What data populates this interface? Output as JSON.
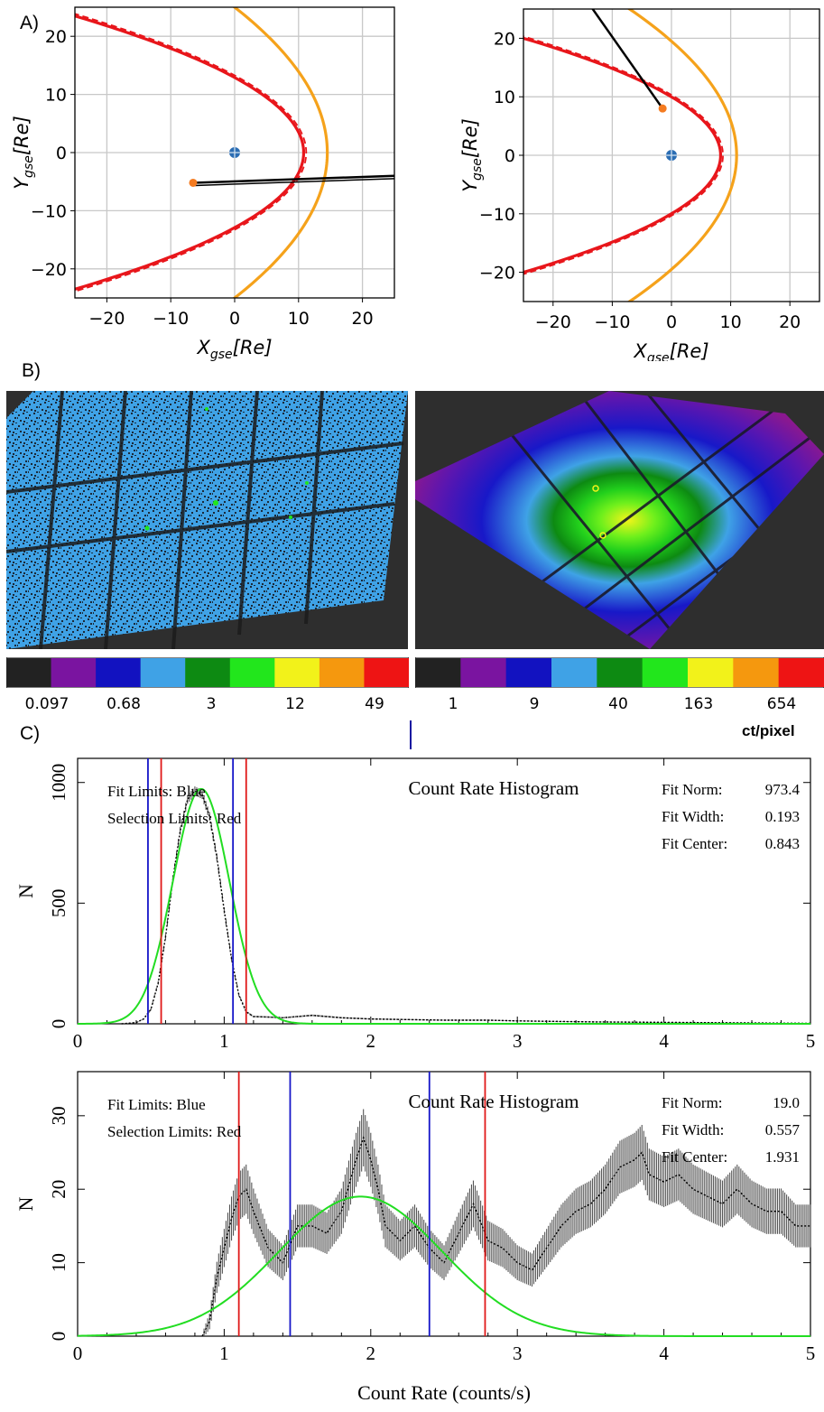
{
  "panel_labels": {
    "a": "A)",
    "b": "B)",
    "c": "C)"
  },
  "colors": {
    "magnetopause": "#e8161b",
    "bow_shock": "#f5a21b",
    "trajectory": "#000000",
    "earth": "#2b6db3",
    "marker": "#f47b20",
    "fit_limits": "#1515c8",
    "selection_limits": "#e01818",
    "fit_curve": "#22dd22",
    "histogram": "#000000"
  },
  "colorbar_palette": [
    "#222222",
    "#7a14a0",
    "#1212c0",
    "#3fa2e6",
    "#0d8a12",
    "#22e61c",
    "#f2f21a",
    "#f5980e",
    "#ee1414"
  ],
  "colorbar_left": {
    "labels": [
      "0.097",
      "0.68",
      "3",
      "12",
      "49"
    ]
  },
  "colorbar_right": {
    "labels": [
      "1",
      "9",
      "40",
      "163",
      "654"
    ],
    "unit": "ct/pixel"
  },
  "chart_data": [
    {
      "type": "line",
      "panel": "A-left",
      "xlabel": "X_gse[Re]",
      "ylabel": "Y_gse[Re]",
      "xlim": [
        -25,
        25
      ],
      "ylim": [
        -25,
        25
      ],
      "xticks": [
        "−20",
        "−10",
        "0",
        "10",
        "20"
      ],
      "yticks": [
        "20",
        "10",
        "0",
        "−10",
        "−20"
      ],
      "grid": true,
      "series": [
        {
          "kind": "magnetopause",
          "nose_x": 10.8,
          "flank_y_at_x_minus25": 23.5
        },
        {
          "kind": "bow_shock",
          "nose_x": 14.5,
          "flank_y_at_x_0": 25.0
        },
        {
          "kind": "trajectory",
          "points": [
            [
              -6.5,
              -5.2
            ],
            [
              25,
              -4.0
            ]
          ]
        },
        {
          "kind": "earth",
          "points": [
            [
              0,
              0
            ]
          ]
        },
        {
          "kind": "spacecraft",
          "points": [
            [
              -6.5,
              -5.2
            ]
          ]
        }
      ]
    },
    {
      "type": "line",
      "panel": "A-right",
      "xlabel": "X_gse[Re]",
      "ylabel": "Y_gse[Re]",
      "xlim": [
        -25,
        25
      ],
      "ylim": [
        -25,
        25
      ],
      "xticks": [
        "−20",
        "−10",
        "0",
        "10",
        "20"
      ],
      "yticks": [
        "20",
        "10",
        "0",
        "−10",
        "−20"
      ],
      "grid": true,
      "series": [
        {
          "kind": "magnetopause",
          "nose_x": 8.3,
          "flank_y_at_x_minus25": 20.0
        },
        {
          "kind": "bow_shock",
          "nose_x": 11.0,
          "flank_y_at_x_0": 19.5
        },
        {
          "kind": "trajectory",
          "points": [
            [
              -14,
              26
            ],
            [
              -1.5,
              8
            ]
          ]
        },
        {
          "kind": "earth",
          "points": [
            [
              0,
              0
            ]
          ]
        },
        {
          "kind": "spacecraft",
          "points": [
            [
              -1.5,
              8
            ]
          ]
        }
      ]
    },
    {
      "type": "line",
      "panel": "C-top",
      "title": "Count Rate Histogram",
      "ylabel": "N",
      "xlim": [
        0,
        5
      ],
      "ylim": [
        0,
        1100
      ],
      "xticks": [
        "0",
        "1",
        "2",
        "3",
        "4",
        "5"
      ],
      "yticks": [
        "0",
        "500",
        "1000"
      ],
      "annotations": {
        "left": [
          "Fit Limits: Blue",
          "Selection Limits: Red"
        ],
        "right_labels": [
          "Fit Norm:",
          "Fit Width:",
          "Fit Center:"
        ],
        "right_values": [
          "973.4",
          "0.193",
          "0.843"
        ]
      },
      "fit": {
        "norm": 973.4,
        "width": 0.193,
        "center": 0.843
      },
      "fit_limits": [
        0.48,
        1.06
      ],
      "selection_limits": [
        0.57,
        1.15
      ],
      "histogram": {
        "x": [
          0.3,
          0.4,
          0.45,
          0.5,
          0.55,
          0.6,
          0.65,
          0.7,
          0.75,
          0.8,
          0.85,
          0.9,
          0.95,
          1.0,
          1.05,
          1.1,
          1.15,
          1.2,
          1.3,
          1.4,
          1.5,
          1.6,
          1.8,
          2.0,
          2.2,
          2.5,
          2.8,
          3.0,
          3.5,
          4.0,
          4.5,
          5.0
        ],
        "y": [
          0,
          5,
          20,
          60,
          170,
          360,
          600,
          800,
          930,
          965,
          950,
          860,
          690,
          470,
          270,
          120,
          50,
          30,
          28,
          25,
          30,
          35,
          25,
          20,
          18,
          15,
          15,
          12,
          8,
          6,
          4,
          2
        ]
      }
    },
    {
      "type": "line",
      "panel": "C-bottom",
      "title": "Count Rate Histogram",
      "xlabel": "Count Rate (counts/s)",
      "ylabel": "N",
      "xlim": [
        0,
        5
      ],
      "ylim": [
        0,
        36
      ],
      "xticks": [
        "0",
        "1",
        "2",
        "3",
        "4",
        "5"
      ],
      "yticks": [
        "0",
        "10",
        "20",
        "30"
      ],
      "annotations": {
        "left": [
          "Fit Limits: Blue",
          "Selection Limits: Red"
        ],
        "right_labels": [
          "Fit Norm:",
          "Fit Width:",
          "Fit Center:"
        ],
        "right_values": [
          "19.0",
          "0.557",
          "1.931"
        ]
      },
      "fit": {
        "norm": 19.0,
        "width": 0.557,
        "center": 1.931
      },
      "fit_limits": [
        1.45,
        2.4
      ],
      "selection_limits": [
        1.1,
        2.78
      ],
      "histogram": {
        "x": [
          0.85,
          0.9,
          0.95,
          1.0,
          1.05,
          1.1,
          1.15,
          1.2,
          1.3,
          1.4,
          1.5,
          1.6,
          1.7,
          1.8,
          1.9,
          1.95,
          2.0,
          2.05,
          2.1,
          2.2,
          2.3,
          2.4,
          2.5,
          2.6,
          2.7,
          2.8,
          2.9,
          3.0,
          3.1,
          3.2,
          3.3,
          3.4,
          3.5,
          3.6,
          3.7,
          3.8,
          3.85,
          3.9,
          4.0,
          4.1,
          4.2,
          4.3,
          4.4,
          4.5,
          4.6,
          4.7,
          4.8,
          4.9,
          5.0
        ],
        "y": [
          0,
          2,
          8,
          12,
          16,
          19,
          20,
          17,
          12,
          10,
          15,
          15,
          14,
          17,
          24,
          27,
          24,
          20,
          15,
          13,
          15,
          12,
          10,
          14,
          18,
          13,
          12,
          10,
          9,
          12,
          15,
          17,
          18,
          20,
          23,
          24,
          25,
          22,
          21,
          22,
          20,
          19,
          18,
          20,
          18,
          17,
          17,
          15,
          15
        ]
      }
    }
  ]
}
